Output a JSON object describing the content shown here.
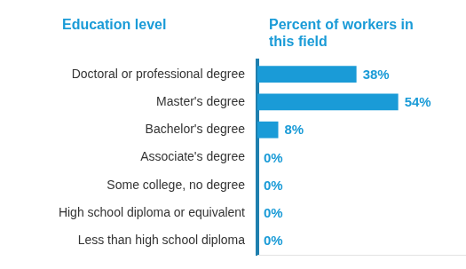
{
  "chart_data": {
    "type": "bar",
    "orientation": "horizontal",
    "y_label": "Education level",
    "x_label": "Percent of workers in this field",
    "categories": [
      "Doctoral or professional degree",
      "Master's degree",
      "Bachelor's degree",
      "Associate's degree",
      "Some college, no degree",
      "High school diploma or equivalent",
      "Less than high school diploma"
    ],
    "values": [
      38,
      54,
      8,
      0,
      0,
      0,
      0
    ],
    "value_labels": [
      "38%",
      "54%",
      "8%",
      "0%",
      "0%",
      "0%",
      "0%"
    ],
    "color": "#1a9bd7",
    "xlim": [
      0,
      80
    ],
    "grid": false,
    "data_labels": true,
    "tick_labels": "y"
  }
}
